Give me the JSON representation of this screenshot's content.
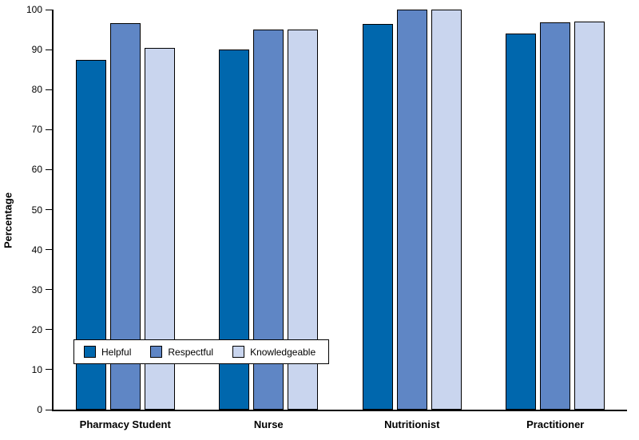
{
  "chart_data": {
    "type": "bar",
    "title": "",
    "xlabel": "",
    "ylabel": "Percentage",
    "ylim": [
      0,
      100
    ],
    "yticks": [
      0,
      10,
      20,
      30,
      40,
      50,
      60,
      70,
      80,
      90,
      100
    ],
    "grid": false,
    "legend_position": "inside-bottom-left",
    "categories": [
      "Pharmacy Student",
      "Nurse",
      "Nutritionist",
      "Practitioner"
    ],
    "series": [
      {
        "name": "Helpful",
        "color": "#0067ad",
        "values": [
          87.5,
          90.0,
          96.4,
          94.0
        ]
      },
      {
        "name": "Respectful",
        "color": "#5f86c5",
        "values": [
          96.6,
          95.0,
          100.0,
          96.8
        ]
      },
      {
        "name": "Knowledgeable",
        "color": "#c9d5ee",
        "values": [
          90.4,
          95.0,
          100.0,
          97.0
        ]
      }
    ]
  }
}
